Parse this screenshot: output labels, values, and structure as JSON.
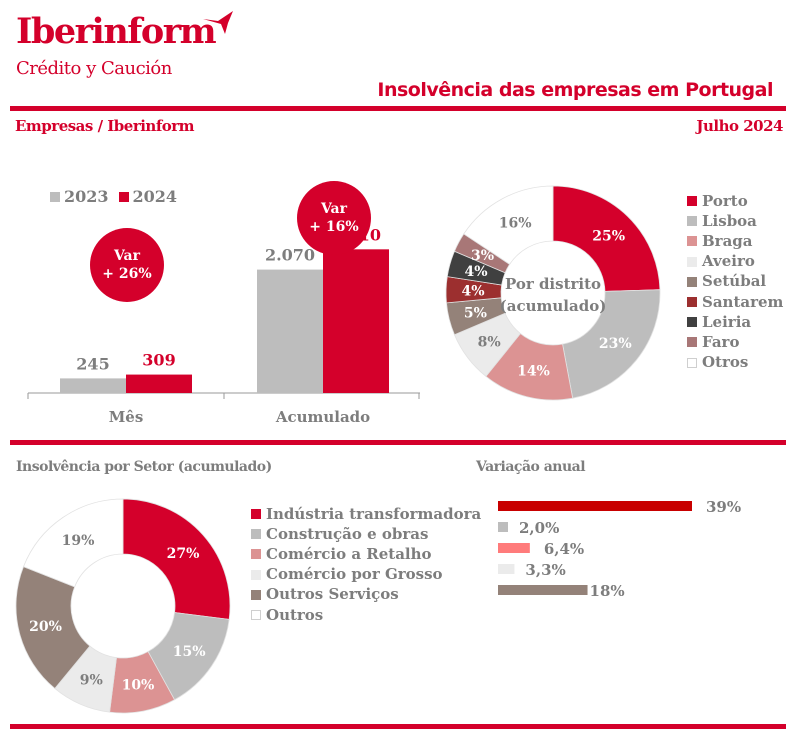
{
  "header": {
    "brand": "Iberinform",
    "brand_sub": "Crédito y Caución",
    "brand_icon": "boomerang-logo-icon",
    "title": "Insolvência das empresas em Portugal",
    "subtitle_left": "Empresas / Iberinform",
    "subtitle_right": "Julho 2024"
  },
  "colors": {
    "brand_red": "#d4002b",
    "grey_2023": "#bdbdbd",
    "text_grey": "#7d7d7d"
  },
  "chart_data": [
    {
      "id": "yearly-comparison",
      "type": "bar",
      "title": "",
      "categories": [
        "Mês",
        "Acumulado"
      ],
      "series": [
        {
          "name": "2023",
          "color": "#bdbdbd",
          "values": [
            245,
            2070
          ],
          "labels": [
            "245",
            "2.070"
          ]
        },
        {
          "name": "2024",
          "color": "#d4002b",
          "values": [
            309,
            2410
          ],
          "labels": [
            "309",
            "2.410"
          ]
        }
      ],
      "annotations": [
        {
          "category": "Mês",
          "title": "Var",
          "value": "+ 26%"
        },
        {
          "category": "Acumulado",
          "title": "Var",
          "value": "+ 16%"
        }
      ],
      "legend": "top-left",
      "ylim": [
        0,
        2600
      ],
      "grid": false
    },
    {
      "id": "by-district",
      "type": "pie",
      "title": "Por distrito (acumulado)",
      "categories": [
        "Porto",
        "Lisboa",
        "Braga",
        "Aveiro",
        "Setúbal",
        "Santarem",
        "Leiria",
        "Faro",
        "Otros"
      ],
      "values": [
        25,
        23,
        14,
        8,
        5,
        4,
        4,
        3,
        16
      ],
      "labels": [
        "25%",
        "23%",
        "14%",
        "8%",
        "5%",
        "4%",
        "4%",
        "3%",
        "16%"
      ],
      "colors": [
        "#d4002b",
        "#bdbdbd",
        "#dc9393",
        "#ebebeb",
        "#948279",
        "#9c2f2f",
        "#404040",
        "#a87777",
        "#ffffff"
      ],
      "label_colors": [
        "#ffffff",
        "#ffffff",
        "#ffffff",
        "#7d7d7d",
        "#ffffff",
        "#ffffff",
        "#ffffff",
        "#ffffff",
        "#7d7d7d"
      ],
      "legend": "right"
    },
    {
      "id": "by-sector",
      "type": "pie",
      "title": "Insolvência por Setor (acumulado)",
      "categories": [
        "Indústria transformadora",
        "Construção e obras",
        "Comércio a Retalho",
        "Comércio por Grosso",
        "Outros Serviços",
        "Outros"
      ],
      "values": [
        27,
        15,
        10,
        9,
        20,
        19
      ],
      "labels": [
        "27%",
        "15%",
        "10%",
        "9%",
        "20%",
        "19%"
      ],
      "colors": [
        "#d4002b",
        "#bdbdbd",
        "#dc9393",
        "#ebebeb",
        "#948279",
        "#ffffff"
      ],
      "label_colors": [
        "#ffffff",
        "#ffffff",
        "#ffffff",
        "#7d7d7d",
        "#ffffff",
        "#7d7d7d"
      ],
      "legend": "right"
    },
    {
      "id": "annual-variation",
      "type": "bar",
      "orientation": "horizontal",
      "title": "Variação anual",
      "categories": [
        "Indústria transformadora",
        "Construção e obras",
        "Comércio a Retalho",
        "Comércio por Grosso",
        "Outros Serviços"
      ],
      "values": [
        39,
        2.0,
        6.4,
        3.3,
        18
      ],
      "labels": [
        "39%",
        "2,0%",
        "6,4%",
        "3,3%",
        "18%"
      ],
      "colors": [
        "#c80000",
        "#bdbdbd",
        "#ff7b7b",
        "#ebebeb",
        "#948279"
      ],
      "xlim": [
        0,
        40
      ]
    }
  ]
}
